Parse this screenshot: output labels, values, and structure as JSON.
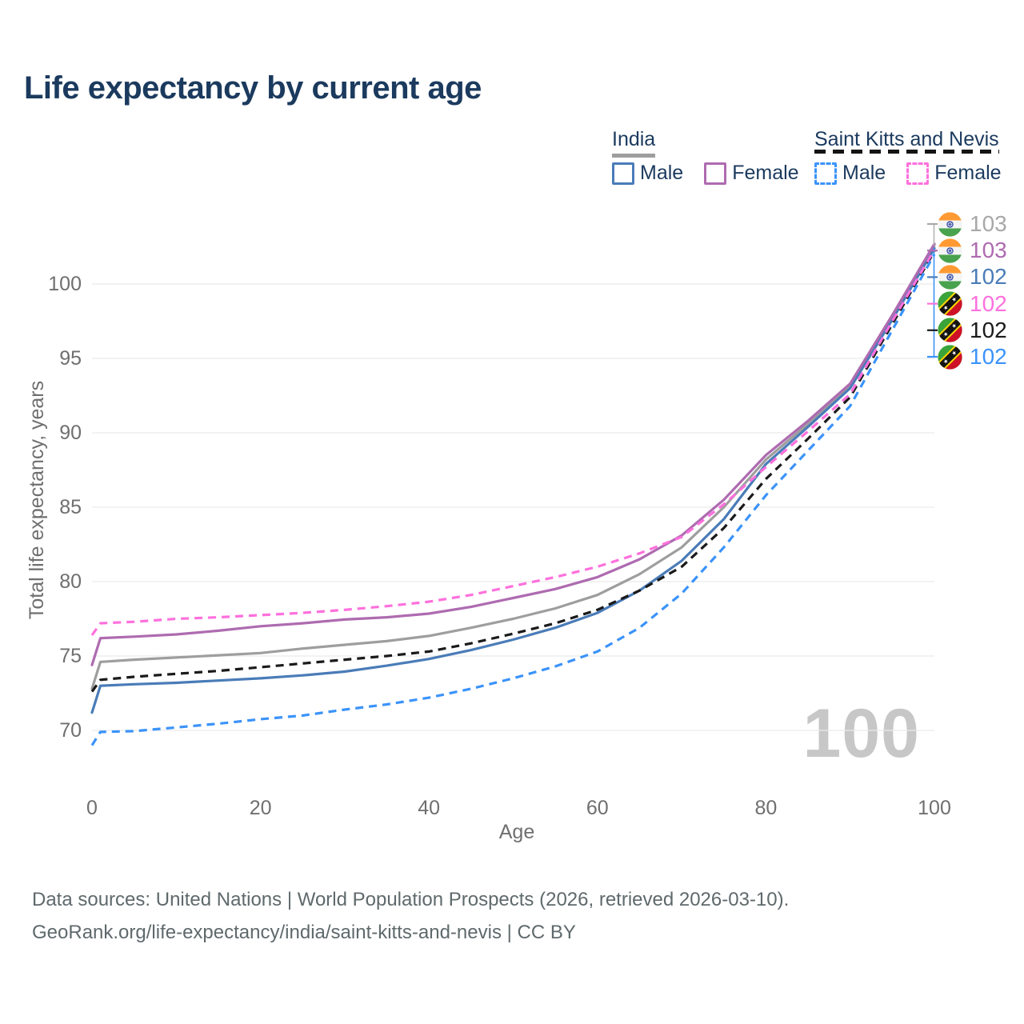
{
  "title": "Life expectancy by current age",
  "legend": {
    "groups": [
      {
        "title": "India",
        "line_style": "solid",
        "underline_color": "#9e9e9e",
        "items": [
          {
            "label": "Male",
            "color": "#4a7cb8"
          },
          {
            "label": "Female",
            "color": "#ae6bb0"
          }
        ]
      },
      {
        "title": "Saint Kitts and Nevis",
        "line_style": "dashed",
        "underline_color": "#141414",
        "items": [
          {
            "label": "Male",
            "color": "#3b93fa"
          },
          {
            "label": "Female",
            "color": "#ff70dd"
          }
        ]
      }
    ]
  },
  "chart_data": {
    "type": "line",
    "title": "Life expectancy by current age",
    "xlabel": "Age",
    "ylabel": "Total life expectancy, years",
    "x_ticks": [
      0,
      20,
      40,
      60,
      80,
      100
    ],
    "y_ticks": [
      70,
      75,
      80,
      85,
      90,
      95,
      100
    ],
    "xlim": [
      0,
      100
    ],
    "ylim": [
      68,
      104
    ],
    "grid": "horizontal-only",
    "legend_position": "top-right",
    "ages": [
      0,
      1,
      5,
      10,
      15,
      20,
      25,
      30,
      35,
      40,
      45,
      50,
      55,
      60,
      65,
      70,
      75,
      80,
      85,
      90,
      95,
      100
    ],
    "series": [
      {
        "id": "india-total",
        "name": "India Total",
        "country": "India",
        "sex": "Both",
        "color": "#9e9e9e",
        "dash": "solid",
        "end_value": 103,
        "values": [
          72.8,
          74.6,
          74.75,
          74.9,
          75.05,
          75.2,
          75.5,
          75.75,
          76.0,
          76.35,
          76.9,
          77.5,
          78.2,
          79.1,
          80.5,
          82.3,
          85.0,
          88.2,
          90.6,
          93.2,
          97.8,
          102.6
        ]
      },
      {
        "id": "india-male",
        "name": "India Male",
        "country": "India",
        "sex": "Male",
        "color": "#4a7cb8",
        "dash": "solid",
        "end_value": 102,
        "values": [
          71.2,
          73.0,
          73.1,
          73.2,
          73.35,
          73.5,
          73.7,
          73.95,
          74.35,
          74.8,
          75.4,
          76.1,
          76.9,
          77.9,
          79.4,
          81.4,
          84.2,
          87.9,
          90.4,
          93.0,
          97.6,
          102.4
        ]
      },
      {
        "id": "india-female",
        "name": "India Female",
        "country": "India",
        "sex": "Female",
        "color": "#ae6bb0",
        "dash": "solid",
        "end_value": 103,
        "values": [
          74.4,
          76.2,
          76.3,
          76.45,
          76.7,
          77.0,
          77.2,
          77.45,
          77.6,
          77.85,
          78.3,
          78.9,
          79.5,
          80.3,
          81.5,
          83.1,
          85.5,
          88.5,
          90.8,
          93.3,
          97.9,
          102.7
        ]
      },
      {
        "id": "skn-total",
        "name": "Saint Kitts and Nevis Total",
        "country": "Saint Kitts and Nevis",
        "sex": "Both",
        "color": "#1a1a1a",
        "dash": "dashed",
        "end_value": 102,
        "values": [
          72.6,
          73.4,
          73.6,
          73.8,
          74.0,
          74.25,
          74.5,
          74.75,
          75.0,
          75.3,
          75.85,
          76.5,
          77.2,
          78.1,
          79.4,
          81.0,
          83.6,
          86.9,
          89.6,
          92.4,
          97.3,
          102.2
        ]
      },
      {
        "id": "skn-male",
        "name": "Saint Kitts and Nevis Male",
        "country": "Saint Kitts and Nevis",
        "sex": "Male",
        "color": "#3b93fa",
        "dash": "dashed",
        "end_value": 102,
        "values": [
          69.0,
          69.9,
          69.95,
          70.2,
          70.45,
          70.75,
          71.0,
          71.4,
          71.75,
          72.2,
          72.8,
          73.5,
          74.3,
          75.3,
          76.9,
          79.2,
          82.3,
          85.8,
          88.8,
          91.8,
          96.9,
          102.0
        ]
      },
      {
        "id": "skn-female",
        "name": "Saint Kitts and Nevis Female",
        "country": "Saint Kitts and Nevis",
        "sex": "Female",
        "color": "#ff70dd",
        "dash": "dashed",
        "end_value": 102,
        "values": [
          76.4,
          77.2,
          77.3,
          77.5,
          77.6,
          77.75,
          77.9,
          78.1,
          78.35,
          78.65,
          79.1,
          79.7,
          80.3,
          81.0,
          81.9,
          83.0,
          85.2,
          87.7,
          90.1,
          92.6,
          97.5,
          102.3
        ]
      }
    ],
    "end_labels": [
      {
        "value": "103",
        "color": "#a8a8a8",
        "flag": "india",
        "series": "India Total"
      },
      {
        "value": "103",
        "color": "#ae6bb0",
        "flag": "india",
        "series": "India Female"
      },
      {
        "value": "102",
        "color": "#4a7cb8",
        "flag": "india",
        "series": "India Male"
      },
      {
        "value": "102",
        "color": "#ff70dd",
        "flag": "skn",
        "series": "Saint Kitts and Nevis Female"
      },
      {
        "value": "102",
        "color": "#1a1a1a",
        "flag": "skn",
        "series": "Saint Kitts and Nevis Total"
      },
      {
        "value": "102",
        "color": "#3b93fa",
        "flag": "skn",
        "series": "Saint Kitts and Nevis Male"
      }
    ]
  },
  "watermark": "100",
  "footer": {
    "line1": "Data sources: United Nations | World Population Prospects (2026, retrieved 2026-03-10).",
    "line2": "GeoRank.org/life-expectancy/india/saint-kitts-and-nevis | CC BY"
  }
}
